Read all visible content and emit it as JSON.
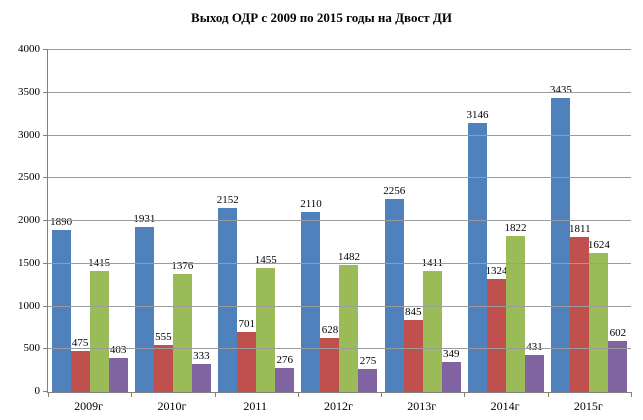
{
  "chart_data": {
    "type": "bar",
    "title": "Выход ОДР с 2009 по 2015 годы на Двост ДИ",
    "categories": [
      "2009г",
      "2010г",
      "2011",
      "2012г",
      "2013г",
      "2014г",
      "2015г"
    ],
    "series": [
      {
        "name": "series-blue",
        "color": "#4F81BD",
        "values": [
          1890,
          1931,
          2152,
          2110,
          2256,
          3146,
          3435
        ]
      },
      {
        "name": "series-red",
        "color": "#C0504D",
        "values": [
          475,
          555,
          701,
          628,
          845,
          1324,
          1811
        ]
      },
      {
        "name": "series-green",
        "color": "#9BBB59",
        "values": [
          1415,
          1376,
          1455,
          1482,
          1411,
          1822,
          1624
        ]
      },
      {
        "name": "series-purple",
        "color": "#8064A2",
        "values": [
          403,
          333,
          276,
          275,
          349,
          431,
          602
        ]
      }
    ],
    "ylim": [
      0,
      4000
    ],
    "ytick_interval": 500,
    "yticks": [
      "0",
      "500",
      "1000",
      "1500",
      "2000",
      "2500",
      "3000",
      "3500",
      "4000"
    ],
    "grid": true,
    "legend_position": "none",
    "data_labels": true,
    "colors": {
      "grid": "#9c9c9c",
      "axis": "#808080",
      "text": "#000000",
      "background": "#ffffff"
    }
  }
}
